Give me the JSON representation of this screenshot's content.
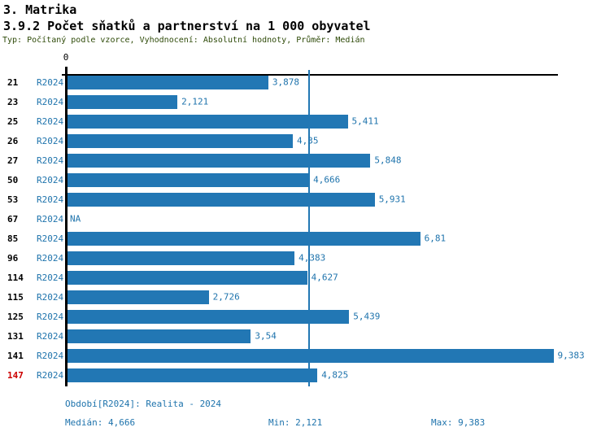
{
  "header": {
    "section": "3. Matrika",
    "title": "3.9.2 Počet sňatků a partnerství na 1 000 obyvatel",
    "subtitle": "Typ: Počítaný podle vzorce, Vyhodnocení: Absolutní hodnoty, Průměr: Medián"
  },
  "chart_data": {
    "type": "bar",
    "orientation": "horizontal",
    "title": "3.9.2 Počet sňatků a partnerství na 1 000 obyvatel",
    "series_label": "R2024",
    "axis_origin_label": "0",
    "axis_max": 9.47,
    "median_value": 4.666,
    "na_label": "NA",
    "legend_position": "none",
    "grid": false,
    "categories": [
      "21",
      "23",
      "25",
      "26",
      "27",
      "50",
      "53",
      "67",
      "85",
      "96",
      "114",
      "115",
      "125",
      "131",
      "141",
      "147"
    ],
    "rows": [
      {
        "id": "21",
        "series": "R2024",
        "value": 3.878,
        "display": "3,878",
        "highlight": false
      },
      {
        "id": "23",
        "series": "R2024",
        "value": 2.121,
        "display": "2,121",
        "highlight": false
      },
      {
        "id": "25",
        "series": "R2024",
        "value": 5.411,
        "display": "5,411",
        "highlight": false
      },
      {
        "id": "26",
        "series": "R2024",
        "value": 4.35,
        "display": "4,35",
        "highlight": false
      },
      {
        "id": "27",
        "series": "R2024",
        "value": 5.848,
        "display": "5,848",
        "highlight": false
      },
      {
        "id": "50",
        "series": "R2024",
        "value": 4.666,
        "display": "4,666",
        "highlight": false
      },
      {
        "id": "53",
        "series": "R2024",
        "value": 5.931,
        "display": "5,931",
        "highlight": false
      },
      {
        "id": "67",
        "series": "R2024",
        "value": null,
        "display": "NA",
        "highlight": false
      },
      {
        "id": "85",
        "series": "R2024",
        "value": 6.81,
        "display": "6,81",
        "highlight": false
      },
      {
        "id": "96",
        "series": "R2024",
        "value": 4.383,
        "display": "4,383",
        "highlight": false
      },
      {
        "id": "114",
        "series": "R2024",
        "value": 4.627,
        "display": "4,627",
        "highlight": false
      },
      {
        "id": "115",
        "series": "R2024",
        "value": 2.726,
        "display": "2,726",
        "highlight": false
      },
      {
        "id": "125",
        "series": "R2024",
        "value": 5.439,
        "display": "5,439",
        "highlight": false
      },
      {
        "id": "131",
        "series": "R2024",
        "value": 3.54,
        "display": "3,54",
        "highlight": false
      },
      {
        "id": "141",
        "series": "R2024",
        "value": 9.383,
        "display": "9,383",
        "highlight": false
      },
      {
        "id": "147",
        "series": "R2024",
        "value": 4.825,
        "display": "4,825",
        "highlight": true
      }
    ],
    "colors": {
      "bar": "#2277B4",
      "text_blue": "#1E73AC",
      "highlight_red": "#CC0000",
      "subtitle_green": "#2E4A08",
      "axis_black": "#000000"
    }
  },
  "footer": {
    "period": "Období[R2024]: Realita - 2024",
    "median": "Medián: 4,666",
    "min": "Min: 2,121",
    "max": "Max: 9,383"
  }
}
